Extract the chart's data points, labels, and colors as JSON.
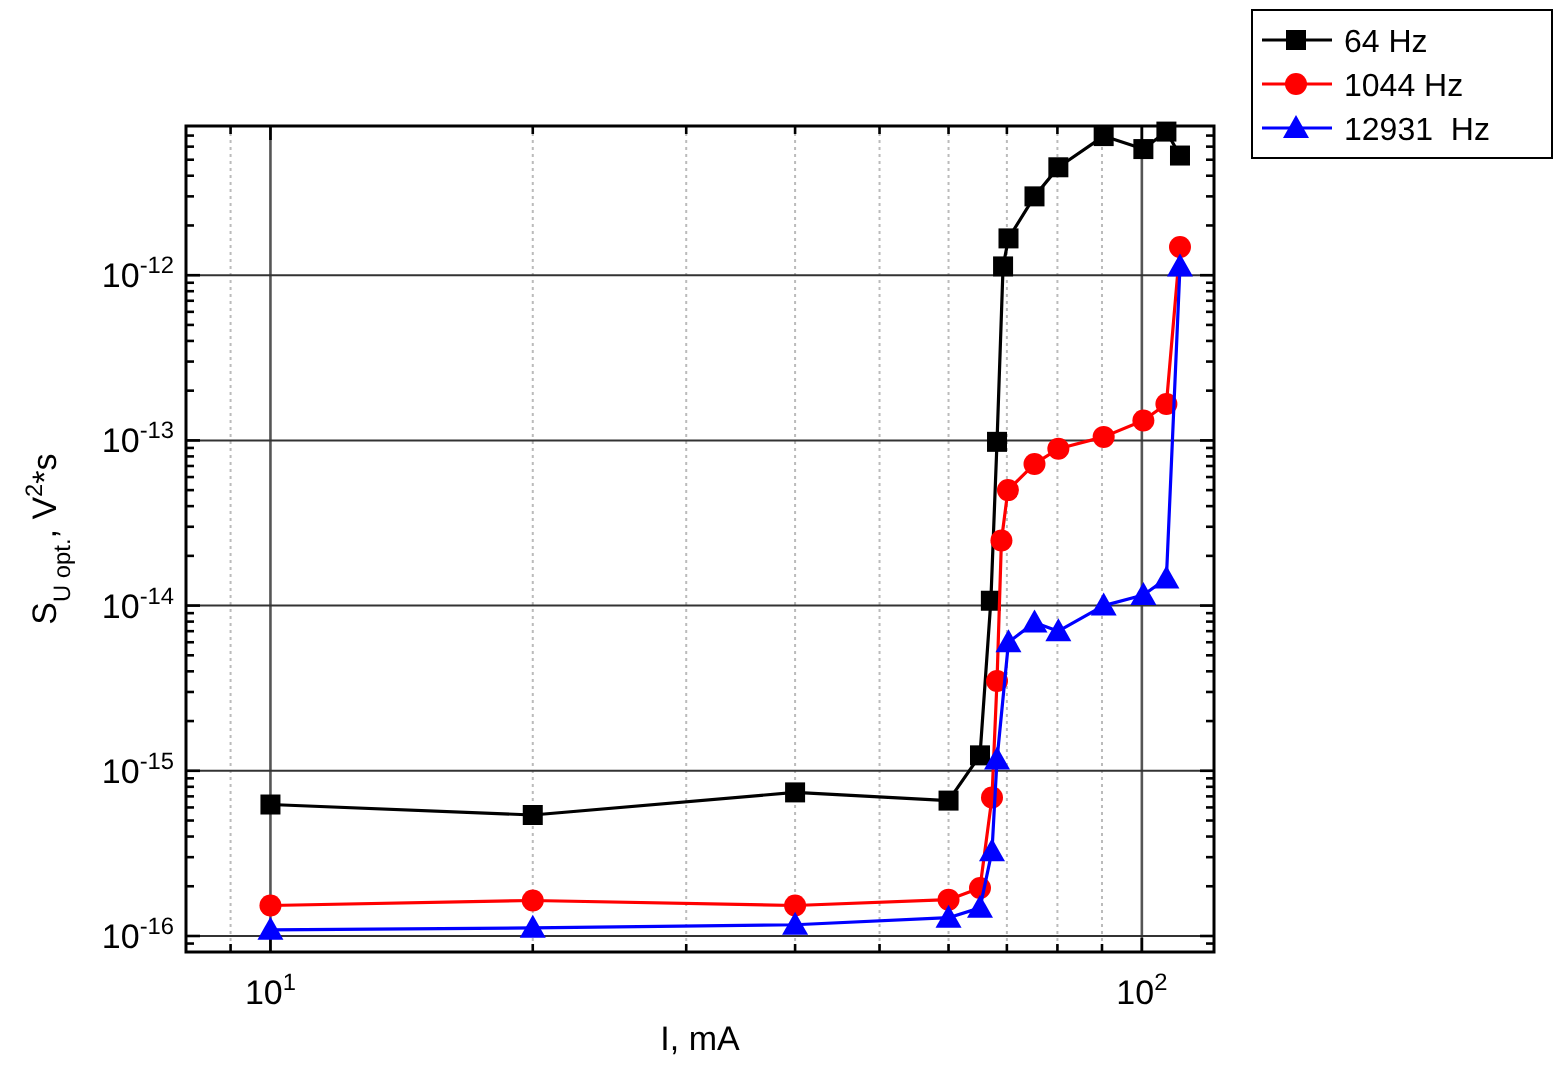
{
  "chart_data": {
    "type": "line",
    "xlabel": "I, mA",
    "ylabel": "S$_{U opt.}$, V$^{2}$*s",
    "log": "xy",
    "grid": true,
    "legend": "top right",
    "line_style": "solid",
    "xlim": [
      8,
      121
    ],
    "ylim": [
      8e-17,
      8e-12
    ],
    "xticks": [
      {
        "value": 9,
        "label": null
      },
      {
        "value": 10,
        "label": "10$^{1}$"
      },
      {
        "value": 20,
        "label": null
      },
      {
        "value": 30,
        "label": null
      },
      {
        "value": 40,
        "label": null
      },
      {
        "value": 50,
        "label": null
      },
      {
        "value": 60,
        "label": null
      },
      {
        "value": 70,
        "label": null
      },
      {
        "value": 80,
        "label": null
      },
      {
        "value": 90,
        "label": null
      },
      {
        "value": 100,
        "label": "10$^{2}$"
      }
    ],
    "yticks": [
      {
        "value": 9e-17,
        "label": null
      },
      {
        "value": 1e-16,
        "label": "10$^{-16}$"
      },
      {
        "value": 2e-16,
        "label": null
      },
      {
        "value": 3e-16,
        "label": null
      },
      {
        "value": 4e-16,
        "label": null
      },
      {
        "value": 5e-16,
        "label": null
      },
      {
        "value": 6e-16,
        "label": null
      },
      {
        "value": 7e-16,
        "label": null
      },
      {
        "value": 8e-16,
        "label": null
      },
      {
        "value": 9e-16,
        "label": null
      },
      {
        "value": 1e-15,
        "label": "10$^{-15}$"
      },
      {
        "value": 2e-15,
        "label": null
      },
      {
        "value": 3e-15,
        "label": null
      },
      {
        "value": 4e-15,
        "label": null
      },
      {
        "value": 5e-15,
        "label": null
      },
      {
        "value": 6e-15,
        "label": null
      },
      {
        "value": 7e-15,
        "label": null
      },
      {
        "value": 8e-15,
        "label": null
      },
      {
        "value": 9e-15,
        "label": null
      },
      {
        "value": 1e-14,
        "label": "10$^{-14}$"
      },
      {
        "value": 2e-14,
        "label": null
      },
      {
        "value": 3e-14,
        "label": null
      },
      {
        "value": 4e-14,
        "label": null
      },
      {
        "value": 5e-14,
        "label": null
      },
      {
        "value": 6e-14,
        "label": null
      },
      {
        "value": 7e-14,
        "label": null
      },
      {
        "value": 8e-14,
        "label": null
      },
      {
        "value": 9e-14,
        "label": null
      },
      {
        "value": 1e-13,
        "label": "10$^{-13}$"
      },
      {
        "value": 2e-13,
        "label": null
      },
      {
        "value": 3e-13,
        "label": null
      },
      {
        "value": 4e-13,
        "label": null
      },
      {
        "value": 5e-13,
        "label": null
      },
      {
        "value": 6e-13,
        "label": null
      },
      {
        "value": 7e-13,
        "label": null
      },
      {
        "value": 8e-13,
        "label": null
      },
      {
        "value": 9e-13,
        "label": null
      },
      {
        "value": 1e-12,
        "label": "10$^{-12}$"
      },
      {
        "value": 2e-12,
        "label": null
      },
      {
        "value": 3e-12,
        "label": null
      },
      {
        "value": 4e-12,
        "label": null
      },
      {
        "value": 5e-12,
        "label": null
      },
      {
        "value": 6e-12,
        "label": null
      },
      {
        "value": 7e-12,
        "label": null
      }
    ],
    "series": [
      {
        "name": "64 Hz",
        "color": "#000000",
        "marker": "square",
        "x": [
          10,
          20,
          40,
          60,
          65.2,
          67.1,
          68.2,
          69.3,
          70.3,
          75.3,
          80.2,
          90.4,
          100.4,
          106.7,
          110.6
        ],
        "values": [
          6.25e-16,
          5.4e-16,
          7.4e-16,
          6.6e-16,
          1.24e-15,
          1.07e-14,
          9.8e-14,
          1.13e-12,
          1.67e-12,
          3e-12,
          4.5e-12,
          6.95e-12,
          5.8e-12,
          7.4e-12,
          5.3e-12
        ]
      },
      {
        "name": "1044 Hz",
        "color": "#ff0000",
        "marker": "circle",
        "x": [
          10,
          20,
          40,
          60,
          65.2,
          67.3,
          68.2,
          69.0,
          70.2,
          75.3,
          80.2,
          90.4,
          100.4,
          106.7,
          110.6
        ],
        "values": [
          1.53e-16,
          1.64e-16,
          1.53e-16,
          1.66e-16,
          1.95e-16,
          6.9e-16,
          3.5e-15,
          2.48e-14,
          5e-14,
          7.2e-14,
          8.9e-14,
          1.05e-13,
          1.32e-13,
          1.66e-13,
          1.48e-12
        ]
      },
      {
        "name": "12931  Hz",
        "color": "#0000ff",
        "marker": "triangle",
        "x": [
          10,
          20,
          40,
          60,
          65.2,
          67.3,
          68.2,
          70.3,
          75.3,
          80.2,
          90.4,
          100.4,
          106.7,
          110.6
        ],
        "values": [
          1.09e-16,
          1.12e-16,
          1.17e-16,
          1.29e-16,
          1.48e-16,
          3.26e-16,
          1.17e-15,
          6e-15,
          7.9e-15,
          7e-15,
          1e-14,
          1.16e-14,
          1.46e-14,
          1.13e-12
        ]
      }
    ]
  }
}
